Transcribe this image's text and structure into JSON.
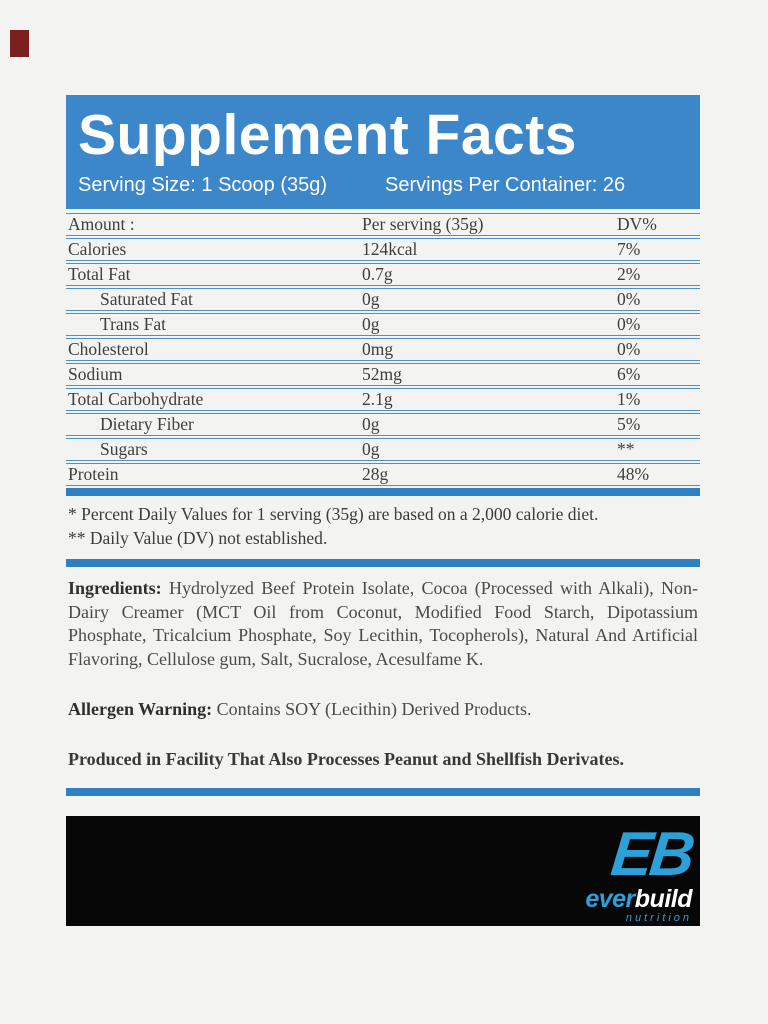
{
  "page": {
    "background_color": "#f3f3f2",
    "accent_blue": "#3c87c9",
    "bar_blue": "#2e80c3",
    "line_blue": "#4a90cc",
    "logo_blue": "#2da0d9",
    "red_mark_color": "#7c1f1f"
  },
  "header": {
    "title": "Supplement Facts",
    "serving_size": "Serving Size: 1 Scoop (35g)",
    "servings_per_container": "Servings Per Container: 26"
  },
  "table": {
    "columns": {
      "amount": "Amount :",
      "per_serving": "Per serving (35g)",
      "dv": "DV%"
    },
    "rows": [
      {
        "label": "Calories",
        "value": "124kcal",
        "dv": "7%",
        "indent": false
      },
      {
        "label": "Total Fat",
        "value": "0.7g",
        "dv": "2%",
        "indent": false
      },
      {
        "label": "Saturated Fat",
        "value": "0g",
        "dv": "0%",
        "indent": true
      },
      {
        "label": "Trans Fat",
        "value": "0g",
        "dv": "0%",
        "indent": true
      },
      {
        "label": "Cholesterol",
        "value": "0mg",
        "dv": "0%",
        "indent": false
      },
      {
        "label": "Sodium",
        "value": "52mg",
        "dv": "6%",
        "indent": false
      },
      {
        "label": "Total Carbohydrate",
        "value": "2.1g",
        "dv": "1%",
        "indent": false
      },
      {
        "label": "Dietary Fiber",
        "value": "0g",
        "dv": "5%",
        "indent": true
      },
      {
        "label": "Sugars",
        "value": "0g",
        "dv": "**",
        "indent": true
      },
      {
        "label": "Protein",
        "value": "28g",
        "dv": "48%",
        "indent": false
      }
    ]
  },
  "footnotes": {
    "line1": "* Percent Daily Values for 1 serving (35g) are based on a 2,000 calorie diet.",
    "line2": "** Daily Value (DV) not established."
  },
  "ingredients": {
    "label": "Ingredients:",
    "text": " Hydrolyzed Beef Protein Isolate, Cocoa (Processed with Alkali), Non-Dairy Creamer (MCT Oil from Coconut, Modified Food Starch, Dipotassium Phosphate, Tricalcium Phosphate, Soy Lecithin, Tocopherols), Natural And Artificial Flavoring, Cellulose gum, Salt, Sucralose, Acesulfame K."
  },
  "allergen": {
    "label": "Allergen Warning:",
    "text": " Contains SOY (Lecithin) Derived Products."
  },
  "facility_warning": "Produced in Facility That Also Processes Peanut and Shellfish Derivates.",
  "footer_logo": {
    "monogram": "EB",
    "brand_part1": "ever",
    "brand_part2": "build",
    "tagline": "nutrition"
  }
}
